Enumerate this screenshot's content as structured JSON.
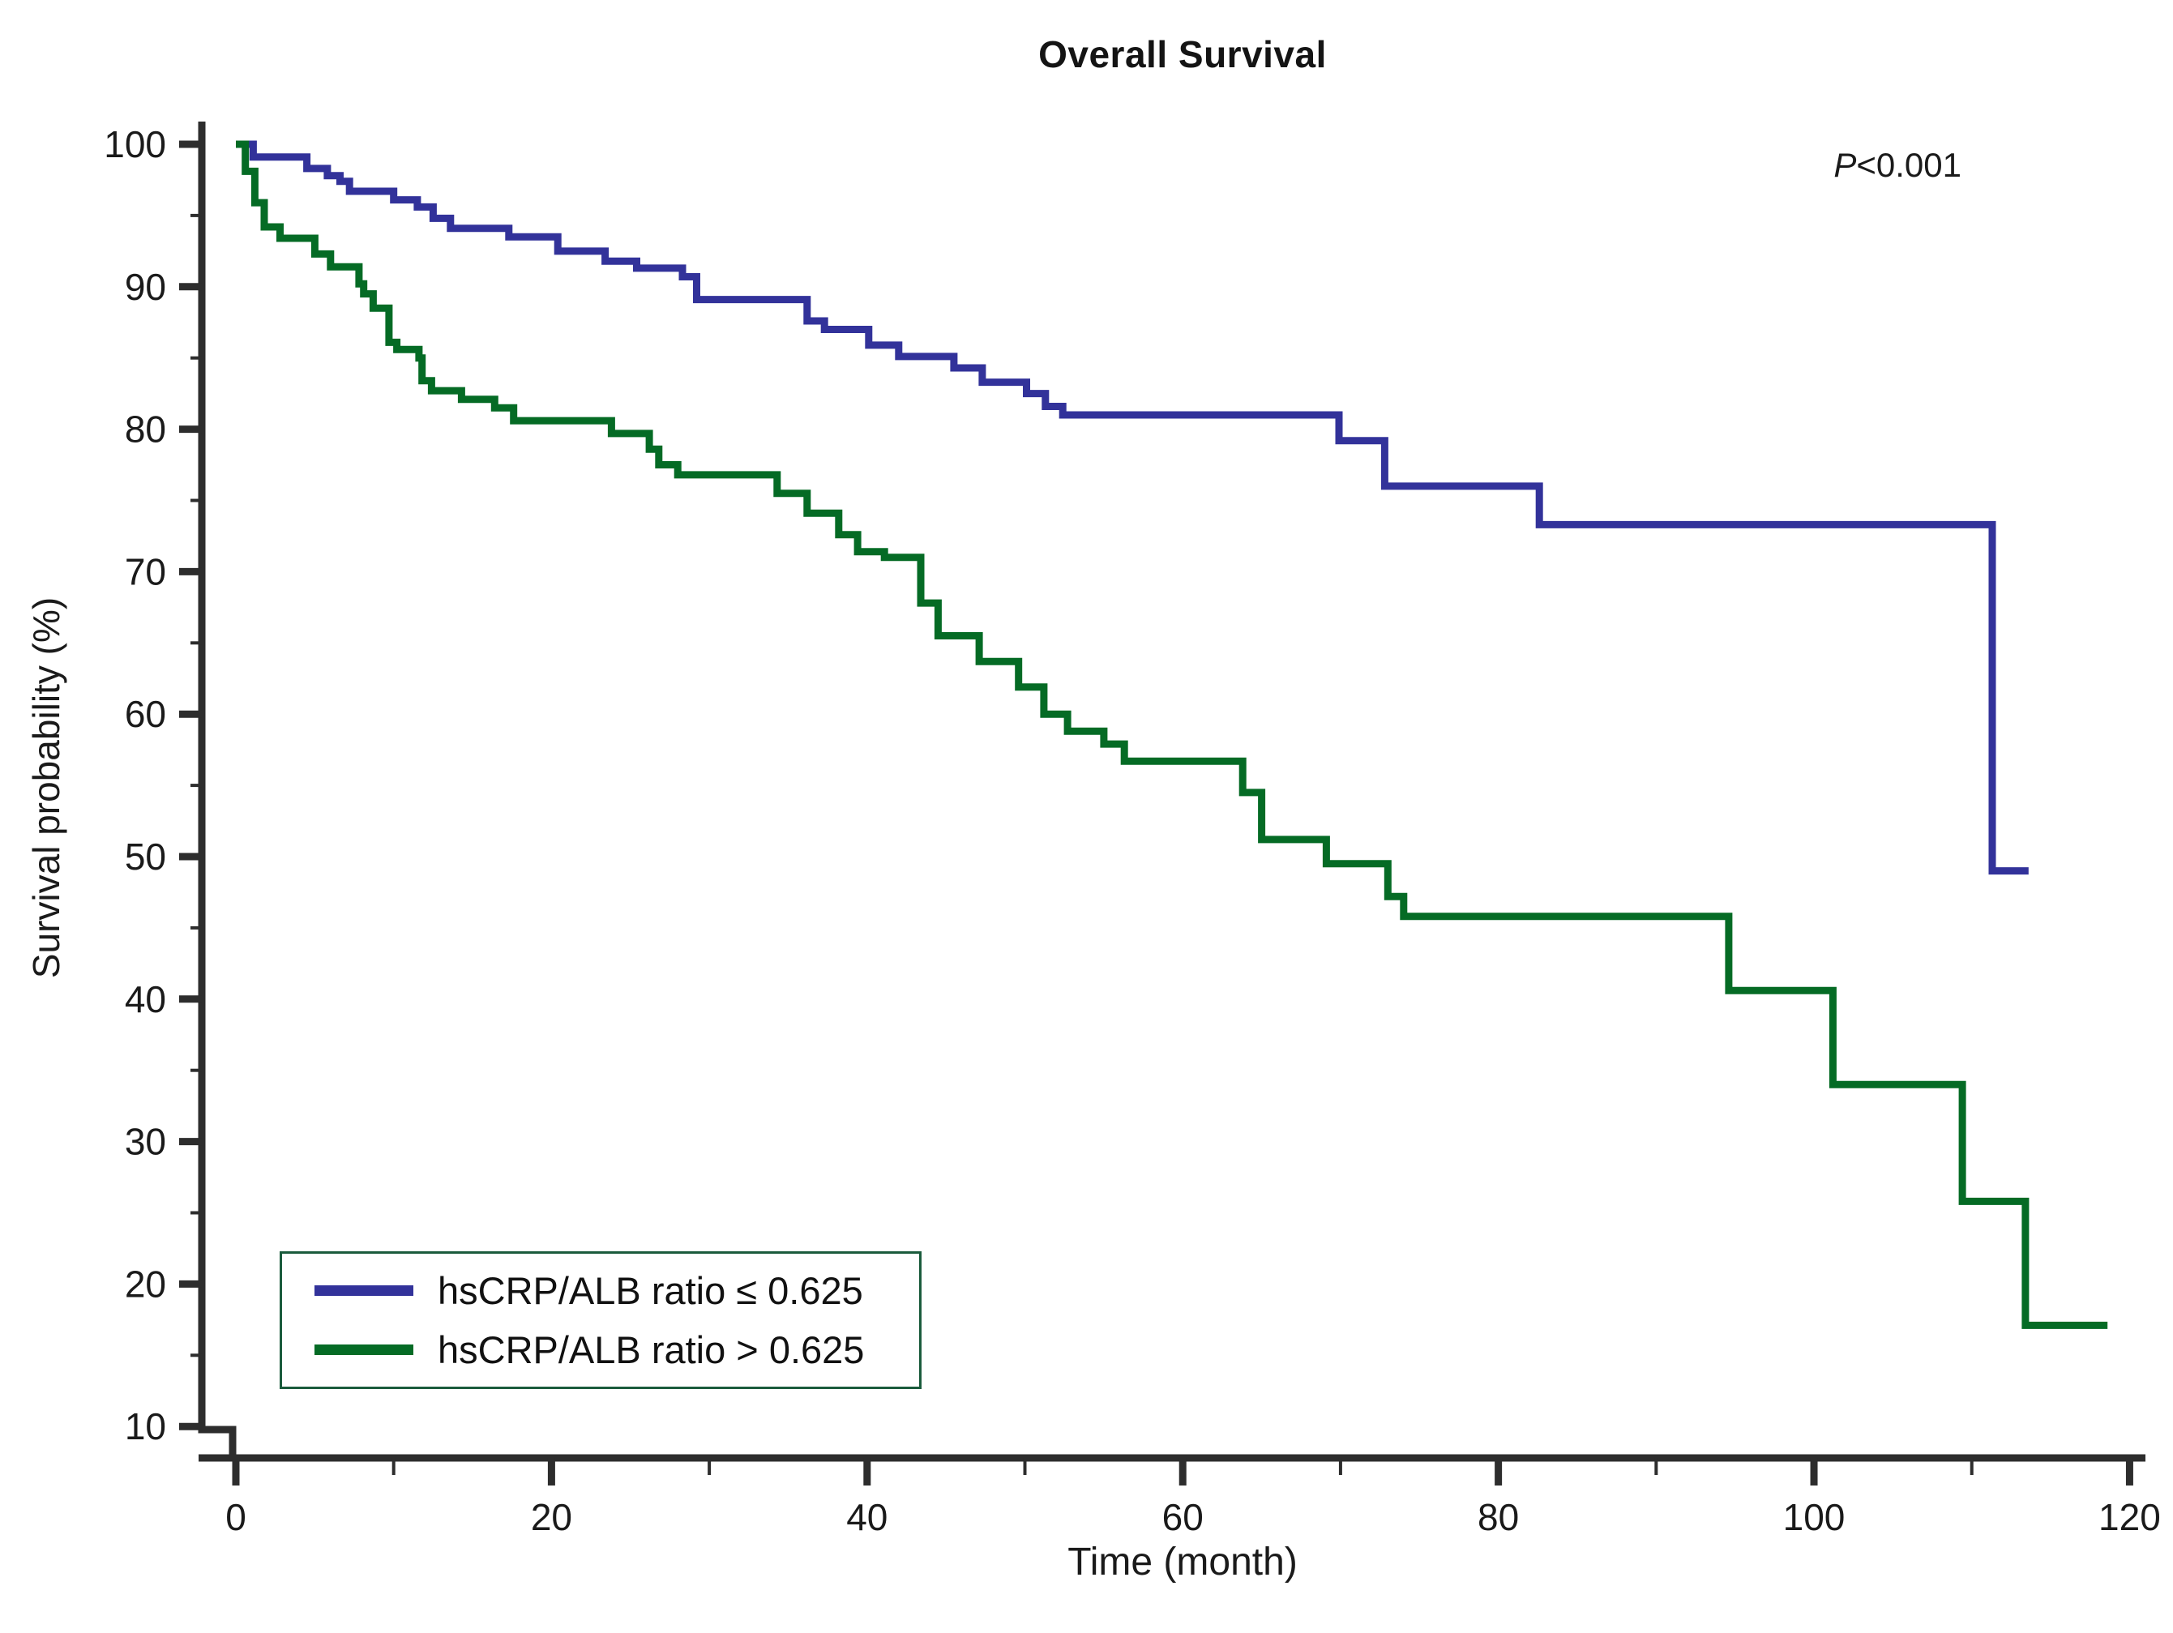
{
  "chart_data": {
    "type": "line",
    "variant": "kaplan-meier-step",
    "title": "Overall Survival",
    "xlabel": "Time (month)",
    "ylabel": "Survival probability (%)",
    "xlim": [
      0,
      120
    ],
    "ylim": [
      10,
      100
    ],
    "x_ticks": [
      0,
      20,
      40,
      60,
      80,
      100,
      120
    ],
    "x_minor_ticks": [
      10,
      30,
      50,
      70,
      90,
      110
    ],
    "y_ticks": [
      100,
      90,
      80,
      70,
      60,
      50,
      40,
      30,
      20,
      10
    ],
    "y_minor_ticks": [
      95,
      85,
      75,
      65,
      55,
      45,
      35,
      25,
      15
    ],
    "grid": false,
    "legend_position": "lower-left",
    "annotation": {
      "full": "P<0.001",
      "italic": "P",
      "rest": "<0.001"
    },
    "axis_color": "#2d2d2d",
    "series": [
      {
        "name": "hsCRP/ALB ratio ≤ 0.625",
        "color": "#32329A",
        "end_time": 113.6,
        "steps": [
          [
            0,
            100
          ],
          [
            1.1,
            99.1
          ],
          [
            4.5,
            98.3
          ],
          [
            5.8,
            97.8
          ],
          [
            6.6,
            97.4
          ],
          [
            7.2,
            96.7
          ],
          [
            10,
            96.1
          ],
          [
            11.5,
            95.6
          ],
          [
            12.5,
            94.8
          ],
          [
            13.6,
            94.1
          ],
          [
            17.3,
            93.5
          ],
          [
            20.4,
            92.5
          ],
          [
            23.4,
            91.8
          ],
          [
            25.4,
            91.3
          ],
          [
            28.3,
            90.7
          ],
          [
            29.2,
            89.1
          ],
          [
            36.2,
            87.6
          ],
          [
            37.3,
            87.0
          ],
          [
            40.1,
            85.9
          ],
          [
            42,
            85.1
          ],
          [
            45.5,
            84.3
          ],
          [
            47.3,
            83.3
          ],
          [
            50.1,
            82.5
          ],
          [
            51.3,
            81.6
          ],
          [
            52.4,
            81.0
          ],
          [
            69.9,
            79.2
          ],
          [
            72.8,
            76.0
          ],
          [
            82.6,
            73.3
          ],
          [
            111.3,
            49.0
          ]
        ]
      },
      {
        "name": "hsCRP/ALB ratio > 0.625",
        "color": "#056B25",
        "end_time": 118.6,
        "steps": [
          [
            0,
            100
          ],
          [
            0.6,
            98.1
          ],
          [
            1.2,
            95.9
          ],
          [
            1.8,
            94.2
          ],
          [
            2.8,
            93.4
          ],
          [
            5,
            92.3
          ],
          [
            6,
            91.4
          ],
          [
            7.8,
            90.2
          ],
          [
            8.1,
            89.5
          ],
          [
            8.7,
            88.5
          ],
          [
            9.7,
            86.1
          ],
          [
            10.2,
            85.6
          ],
          [
            11.6,
            85.0
          ],
          [
            11.8,
            83.4
          ],
          [
            12.4,
            82.7
          ],
          [
            14.3,
            82.1
          ],
          [
            16.4,
            81.5
          ],
          [
            17.6,
            80.6
          ],
          [
            23.8,
            79.7
          ],
          [
            26.2,
            78.6
          ],
          [
            26.8,
            77.5
          ],
          [
            28,
            76.8
          ],
          [
            34.3,
            75.5
          ],
          [
            36.2,
            74.1
          ],
          [
            38.2,
            72.6
          ],
          [
            39.4,
            71.4
          ],
          [
            41.1,
            71.0
          ],
          [
            43.4,
            67.8
          ],
          [
            44.5,
            65.5
          ],
          [
            47.1,
            63.7
          ],
          [
            49.6,
            61.9
          ],
          [
            51.2,
            60.0
          ],
          [
            52.7,
            58.8
          ],
          [
            55,
            57.9
          ],
          [
            56.3,
            56.7
          ],
          [
            63.8,
            54.5
          ],
          [
            65,
            51.2
          ],
          [
            69.1,
            49.5
          ],
          [
            73,
            47.2
          ],
          [
            74,
            45.8
          ],
          [
            94.6,
            40.6
          ],
          [
            101.2,
            34.0
          ],
          [
            109.4,
            25.8
          ],
          [
            113.4,
            17.1
          ]
        ]
      }
    ]
  }
}
